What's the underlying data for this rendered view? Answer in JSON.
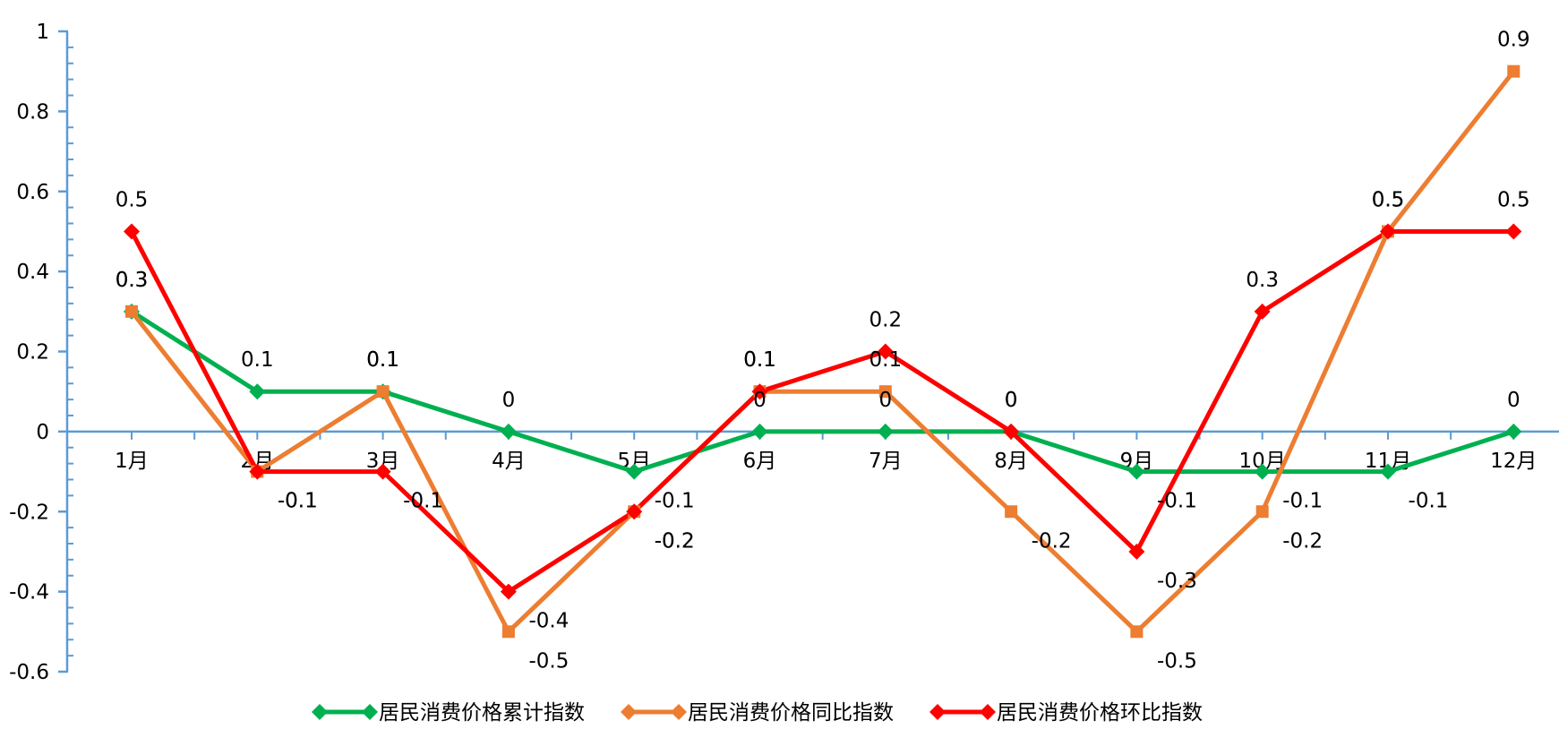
{
  "chart_data": {
    "type": "line",
    "title": "",
    "xlabel": "",
    "ylabel": "",
    "categories": [
      "1月",
      "2月",
      "3月",
      "4月",
      "5月",
      "6月",
      "7月",
      "8月",
      "9月",
      "10月",
      "11月",
      "12月"
    ],
    "ylim": [
      -0.6,
      1
    ],
    "yticks": [
      "1",
      "0.8",
      "0.6",
      "0.4",
      "0.2",
      "0",
      "-0.2",
      "-0.4",
      "-0.6"
    ],
    "grid": false,
    "legend_position": "bottom",
    "series": [
      {
        "name": "居民消费价格累计指数",
        "color": "#00b050",
        "marker": "diamond",
        "values": [
          0.3,
          0.1,
          0.1,
          0,
          -0.1,
          0,
          0,
          0,
          -0.1,
          -0.1,
          -0.1,
          0
        ]
      },
      {
        "name": "居民消费价格同比指数",
        "color": "#ed7d31",
        "marker": "square",
        "values": [
          0.3,
          -0.1,
          0.1,
          -0.5,
          -0.2,
          0.1,
          0.1,
          -0.2,
          -0.5,
          -0.2,
          0.5,
          0.9
        ]
      },
      {
        "name": "居民消费价格环比指数",
        "color": "#ff0000",
        "marker": "diamond",
        "values": [
          0.5,
          -0.1,
          -0.1,
          -0.4,
          -0.2,
          0.1,
          0.2,
          0,
          -0.3,
          0.3,
          0.5,
          0.5
        ]
      }
    ]
  }
}
